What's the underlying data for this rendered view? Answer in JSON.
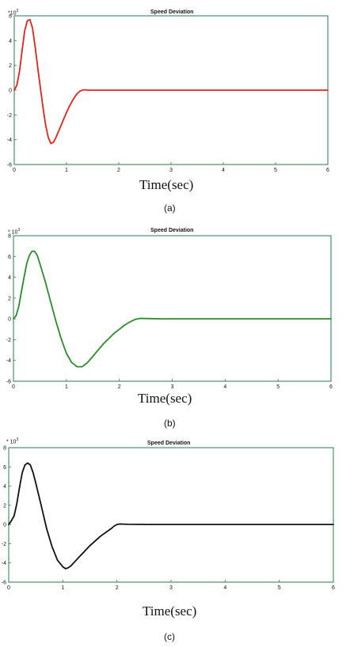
{
  "chart_data": [
    {
      "type": "line",
      "title": "Speed Deviation",
      "xlabel": "Time(sec)",
      "ylabel": "",
      "y_multiplier": "*10",
      "y_exponent": "3",
      "caption": "(a)",
      "xlim": [
        0,
        6
      ],
      "ylim": [
        -6,
        6
      ],
      "xticks": [
        0,
        1,
        2,
        3,
        4,
        5,
        6
      ],
      "yticks": [
        -6,
        -4,
        -2,
        0,
        2,
        4,
        6
      ],
      "grid": false,
      "series": [
        {
          "color": "#e0241b",
          "x": [
            0,
            0.05,
            0.1,
            0.15,
            0.2,
            0.25,
            0.3,
            0.35,
            0.4,
            0.45,
            0.5,
            0.55,
            0.6,
            0.65,
            0.7,
            0.75,
            0.8,
            0.85,
            0.9,
            0.95,
            1.0,
            1.05,
            1.1,
            1.15,
            1.2,
            1.25,
            1.3,
            1.35,
            1.4,
            1.6,
            2,
            3,
            4,
            5,
            6
          ],
          "y": [
            0,
            0.4,
            1.5,
            3.2,
            4.8,
            5.6,
            5.7,
            5.0,
            3.5,
            1.8,
            0.2,
            -1.4,
            -2.8,
            -3.8,
            -4.3,
            -4.2,
            -3.8,
            -3.3,
            -2.8,
            -2.3,
            -1.8,
            -1.35,
            -0.95,
            -0.6,
            -0.3,
            -0.1,
            0.0,
            0.03,
            0.0,
            0,
            0,
            0,
            0,
            0,
            0
          ]
        }
      ]
    },
    {
      "type": "line",
      "title": "Speed Deviation",
      "xlabel": "Time(sec)",
      "ylabel": "",
      "y_multiplier": "* 10",
      "y_exponent": "3",
      "caption": "(b)",
      "xlim": [
        0,
        6
      ],
      "ylim": [
        -6,
        8
      ],
      "xticks": [
        0,
        1,
        2,
        3,
        4,
        5,
        6
      ],
      "yticks": [
        -6,
        -4,
        -2,
        0,
        2,
        4,
        6,
        8
      ],
      "grid": false,
      "series": [
        {
          "color": "#2b8a2b",
          "x": [
            0,
            0.05,
            0.1,
            0.15,
            0.2,
            0.25,
            0.3,
            0.35,
            0.4,
            0.45,
            0.5,
            0.6,
            0.7,
            0.8,
            0.9,
            1.0,
            1.1,
            1.2,
            1.3,
            1.4,
            1.5,
            1.6,
            1.7,
            1.8,
            1.9,
            2.0,
            2.1,
            2.2,
            2.3,
            2.4,
            2.5,
            2.8,
            3,
            4,
            5,
            6
          ],
          "y": [
            0,
            0.3,
            1.2,
            2.6,
            4.0,
            5.3,
            6.1,
            6.5,
            6.5,
            6.1,
            5.3,
            3.6,
            1.7,
            -0.2,
            -1.9,
            -3.3,
            -4.2,
            -4.6,
            -4.6,
            -4.2,
            -3.6,
            -3.0,
            -2.4,
            -1.9,
            -1.4,
            -1.0,
            -0.6,
            -0.3,
            -0.05,
            0.05,
            0.03,
            0,
            0,
            0,
            0,
            0
          ]
        }
      ]
    },
    {
      "type": "line",
      "title": "Speed Deviation",
      "xlabel": "Time(sec)",
      "ylabel": "",
      "y_multiplier": "* 10",
      "y_exponent": "3",
      "caption": "(c)",
      "xlim": [
        0,
        6
      ],
      "ylim": [
        -6,
        8
      ],
      "xticks": [
        0,
        1,
        2,
        3,
        4,
        5,
        6
      ],
      "yticks": [
        -6,
        -4,
        -2,
        0,
        2,
        4,
        6,
        8
      ],
      "grid": false,
      "series": [
        {
          "color": "#111111",
          "x": [
            0,
            0.05,
            0.1,
            0.15,
            0.2,
            0.25,
            0.3,
            0.35,
            0.4,
            0.45,
            0.5,
            0.6,
            0.7,
            0.8,
            0.9,
            1.0,
            1.05,
            1.1,
            1.15,
            1.2,
            1.3,
            1.4,
            1.5,
            1.6,
            1.7,
            1.8,
            1.9,
            1.95,
            2.0,
            2.05,
            2.2,
            2.6,
            3,
            4,
            5,
            6
          ],
          "y": [
            0,
            0.4,
            0.9,
            2.2,
            3.9,
            5.4,
            6.2,
            6.4,
            6.2,
            5.4,
            4.3,
            2.0,
            -0.4,
            -2.3,
            -3.7,
            -4.4,
            -4.6,
            -4.5,
            -4.3,
            -4.0,
            -3.4,
            -2.8,
            -2.2,
            -1.7,
            -1.2,
            -0.8,
            -0.4,
            -0.15,
            0.0,
            0.05,
            0.02,
            0,
            0,
            0,
            0,
            0
          ]
        }
      ]
    }
  ]
}
